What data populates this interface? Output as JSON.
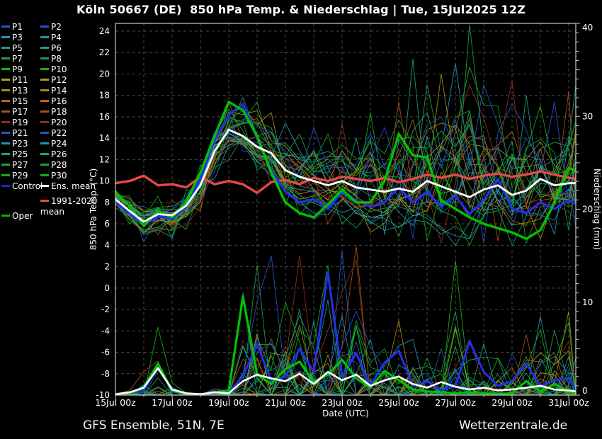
{
  "header": {
    "title": "Köln 50667 (DE)  850 hPa Temp. & Niederschlag | Tue, 15Jul2025 12Z"
  },
  "footer": {
    "left": "GFS Ensemble, 51N, 7E",
    "right": "Wetterzentrale.de"
  },
  "legend": {
    "members": [
      {
        "label": "P1",
        "color": "#2456c8"
      },
      {
        "label": "P2",
        "color": "#2456c8"
      },
      {
        "label": "P3",
        "color": "#1e96b4"
      },
      {
        "label": "P4",
        "color": "#1e96b4"
      },
      {
        "label": "P5",
        "color": "#1e9e82"
      },
      {
        "label": "P6",
        "color": "#1e9e82"
      },
      {
        "label": "P7",
        "color": "#1f9e46"
      },
      {
        "label": "P8",
        "color": "#1f9e46"
      },
      {
        "label": "P9",
        "color": "#15ae15"
      },
      {
        "label": "P10",
        "color": "#15ae15"
      },
      {
        "label": "P11",
        "color": "#a0a41e"
      },
      {
        "label": "P12",
        "color": "#a0a41e"
      },
      {
        "label": "P13",
        "color": "#ab8c17"
      },
      {
        "label": "P14",
        "color": "#ab8c17"
      },
      {
        "label": "P15",
        "color": "#b06c16"
      },
      {
        "label": "P16",
        "color": "#b06c16"
      },
      {
        "label": "P17",
        "color": "#a85214"
      },
      {
        "label": "P18",
        "color": "#a85214"
      },
      {
        "label": "P19",
        "color": "#8f2f1d"
      },
      {
        "label": "P20",
        "color": "#8f2f1d"
      },
      {
        "label": "P21",
        "color": "#2456c8"
      },
      {
        "label": "P22",
        "color": "#2456c8"
      },
      {
        "label": "P23",
        "color": "#1e96b4"
      },
      {
        "label": "P24",
        "color": "#1e96b4"
      },
      {
        "label": "P25",
        "color": "#1e9e82"
      },
      {
        "label": "P26",
        "color": "#1e9e82"
      },
      {
        "label": "P27",
        "color": "#1f9e46"
      },
      {
        "label": "P28",
        "color": "#1f9e46"
      },
      {
        "label": "P29",
        "color": "#15ae15"
      },
      {
        "label": "P30",
        "color": "#15ae15"
      }
    ],
    "control": {
      "label": "Control",
      "color": "#2222dd"
    },
    "ens_mean": {
      "label": "Ens. mean",
      "color": "#ffffff"
    },
    "climate": {
      "label_line1": "1991-2020",
      "label_line2": "mean",
      "color": "#e84848"
    },
    "oper": {
      "label": "Oper",
      "color": "#00b400"
    }
  },
  "chart_data": {
    "type": "line",
    "title": "Köln 50667 (DE)  850 hPa Temp. & Niederschlag | Tue, 15Jul2025 12Z",
    "xlabel": "Date (UTC)",
    "x_unit": "days since 15Jul2025 00z",
    "times": [
      0,
      0.5,
      1,
      1.5,
      2,
      2.5,
      3,
      3.5,
      4,
      4.5,
      5,
      5.5,
      6,
      6.5,
      7,
      7.5,
      8,
      8.5,
      9,
      9.5,
      10,
      10.5,
      11,
      11.5,
      12,
      12.5,
      13,
      13.5,
      14,
      14.5,
      15,
      15.5,
      16,
      16.25
    ],
    "x_ticks": [
      {
        "t": 0,
        "label": "15Jul 00z"
      },
      {
        "t": 2,
        "label": "17Jul 00z"
      },
      {
        "t": 4,
        "label": "19Jul 00z"
      },
      {
        "t": 6,
        "label": "21Jul 00z"
      },
      {
        "t": 8,
        "label": "23Jul 00z"
      },
      {
        "t": 10,
        "label": "25Jul 00z"
      },
      {
        "t": 12,
        "label": "27Jul 00z"
      },
      {
        "t": 14,
        "label": "29Jul 00z"
      },
      {
        "t": 16,
        "label": "31Jul 00z"
      }
    ],
    "y_left": {
      "label": "850 hPa Temp. (°C)",
      "min": -10,
      "max": 24.7,
      "ticks": [
        24,
        22,
        20,
        18,
        16,
        14,
        12,
        10,
        8,
        6,
        4,
        2,
        0,
        -2,
        -4,
        -6,
        -8,
        -10
      ],
      "grid": true
    },
    "y_right": {
      "label": "Niederschlag (mm)",
      "min": 0,
      "max": 40,
      "ticks": [
        40,
        30,
        20,
        10,
        0
      ]
    },
    "series": {
      "ens_mean_temp": [
        8.3,
        7.2,
        6.2,
        6.9,
        6.8,
        7.7,
        9.6,
        12.8,
        14.8,
        14.2,
        13.2,
        12.6,
        11.0,
        10.4,
        10.0,
        9.6,
        10.0,
        9.4,
        9.2,
        9.0,
        9.3,
        9.0,
        10.0,
        9.5,
        9.0,
        8.5,
        9.2,
        9.6,
        8.7,
        9.1,
        10.2,
        9.6,
        9.8,
        9.8
      ],
      "control_temp": [
        8.0,
        7.0,
        5.9,
        6.7,
        6.5,
        7.6,
        10.2,
        13.8,
        16.2,
        17.2,
        14.0,
        11.0,
        9.0,
        8.0,
        8.3,
        7.4,
        9.0,
        8.2,
        7.6,
        8.0,
        9.4,
        8.0,
        9.0,
        7.6,
        8.6,
        6.9,
        8.2,
        10.2,
        7.4,
        7.0,
        8.0,
        7.4,
        8.2,
        8.0
      ],
      "oper_temp": [
        9.0,
        7.6,
        5.8,
        7.2,
        6.6,
        8.0,
        10.8,
        14.2,
        17.4,
        16.6,
        14.2,
        10.8,
        8.0,
        7.0,
        6.6,
        7.8,
        9.2,
        8.0,
        8.0,
        10.0,
        14.4,
        12.4,
        12.2,
        8.2,
        7.4,
        6.6,
        6.0,
        5.6,
        5.2,
        4.6,
        5.4,
        8.0,
        11.2,
        11.0
      ],
      "climate_mean_temp": [
        9.8,
        10.0,
        10.5,
        9.6,
        9.7,
        9.4,
        10.4,
        9.7,
        10.0,
        9.7,
        8.9,
        9.9,
        10.1,
        9.7,
        10.3,
        10.0,
        10.4,
        10.2,
        10.0,
        10.3,
        9.9,
        10.2,
        10.6,
        10.3,
        10.6,
        10.2,
        10.5,
        10.7,
        10.4,
        10.6,
        10.9,
        10.6,
        10.3,
        10.2
      ],
      "ens_mean_precip": [
        0.1,
        0.3,
        0.8,
        2.9,
        0.6,
        0.2,
        0.1,
        0.3,
        0.2,
        1.5,
        2.2,
        1.8,
        1.5,
        2.3,
        1.2,
        2.5,
        1.6,
        2.2,
        1.0,
        1.6,
        2.0,
        1.2,
        0.8,
        1.4,
        0.9,
        0.6,
        0.8,
        0.5,
        0.6,
        0.8,
        1.0,
        0.6,
        0.5,
        0.4
      ],
      "control_precip": [
        0,
        0.2,
        0.5,
        3.2,
        0.4,
        0.1,
        0,
        0.2,
        0.3,
        2,
        5.5,
        1.5,
        2,
        5,
        2.5,
        13.2,
        2,
        4.5,
        1,
        3.5,
        4.8,
        1,
        1.5,
        0.5,
        1,
        5.8,
        2.5,
        1,
        1.5,
        3.4,
        1,
        1.6,
        1.8,
        0.5
      ],
      "oper_precip": [
        0,
        0.2,
        0.8,
        3.4,
        0.5,
        0.1,
        0,
        0.3,
        0.5,
        10.6,
        2.2,
        1.2,
        2.8,
        3.6,
        1.4,
        2.2,
        3.8,
        1.8,
        0.8,
        2.6,
        1.6,
        0.6,
        0.4,
        0.3,
        0.2,
        0.3,
        0.2,
        0.1,
        0.2,
        1.5,
        0.4,
        1.2,
        0.3,
        0.2
      ]
    },
    "ensemble_envelope": {
      "temp_min": [
        7.5,
        6.0,
        4.3,
        5.0,
        4.6,
        5.5,
        7.2,
        10.2,
        12.0,
        12.8,
        11.0,
        9.8,
        7.8,
        6.8,
        6.4,
        6.0,
        6.0,
        5.6,
        5.2,
        5.0,
        4.8,
        4.6,
        4.4,
        4.2,
        4.0,
        4.0,
        4.2,
        4.4,
        4.0,
        4.2,
        4.6,
        5.0,
        5.4,
        5.6
      ],
      "temp_max": [
        9.2,
        8.6,
        7.6,
        8.6,
        8.2,
        9.2,
        11.5,
        14.6,
        17.4,
        17.8,
        17.4,
        16.4,
        15.4,
        14.4,
        15.0,
        14.4,
        15.4,
        14.0,
        16.4,
        15.0,
        17.4,
        21.4,
        19.0,
        20.0,
        21.0,
        24.6,
        19.0,
        17.0,
        19.4,
        18.0,
        17.0,
        17.4,
        18.4,
        19.0
      ],
      "precip_max": [
        0.3,
        0.6,
        2.5,
        7.3,
        2.0,
        0.6,
        0.4,
        1.5,
        1.0,
        11.0,
        14.0,
        15.0,
        10.0,
        15.0,
        8.0,
        14.0,
        15.5,
        16.0,
        6.0,
        5.0,
        8.0,
        6.0,
        4.0,
        5.0,
        14.5,
        6.0,
        5.5,
        4.0,
        4.5,
        6.5,
        8.5,
        7.0,
        9.0,
        4.0
      ]
    },
    "colors": {
      "control": "#2230e8",
      "oper": "#00c200",
      "ens_mean": "#ffffff",
      "climate": "#e84848",
      "background": "#000000",
      "grid": "#4a4a42",
      "axis": "#c8c8c8",
      "text": "#ffffff"
    },
    "legend_position": "left"
  }
}
